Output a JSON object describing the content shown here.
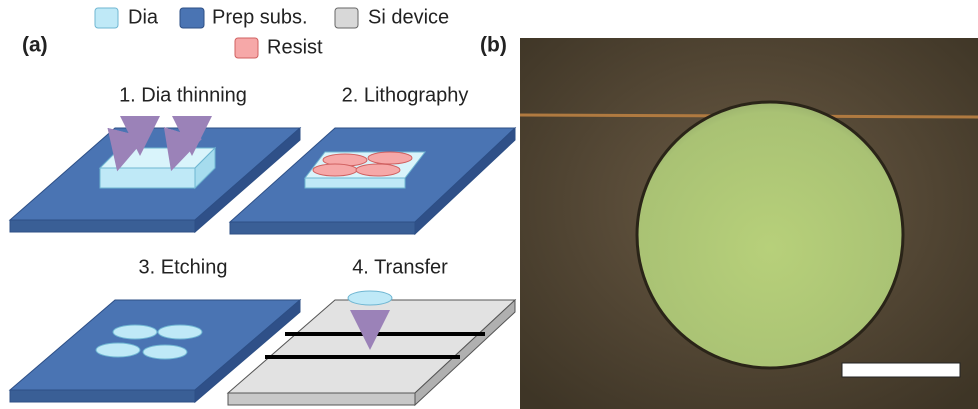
{
  "legend": [
    {
      "label": "Dia"
    },
    {
      "label": "Prep subs."
    },
    {
      "label": "Si device"
    },
    {
      "label": "Resist"
    }
  ],
  "panels": {
    "a": "(a)",
    "b": "(b)"
  },
  "steps": [
    "1. Dia thinning",
    "2. Lithography",
    "3. Etching",
    "4. Transfer"
  ]
}
